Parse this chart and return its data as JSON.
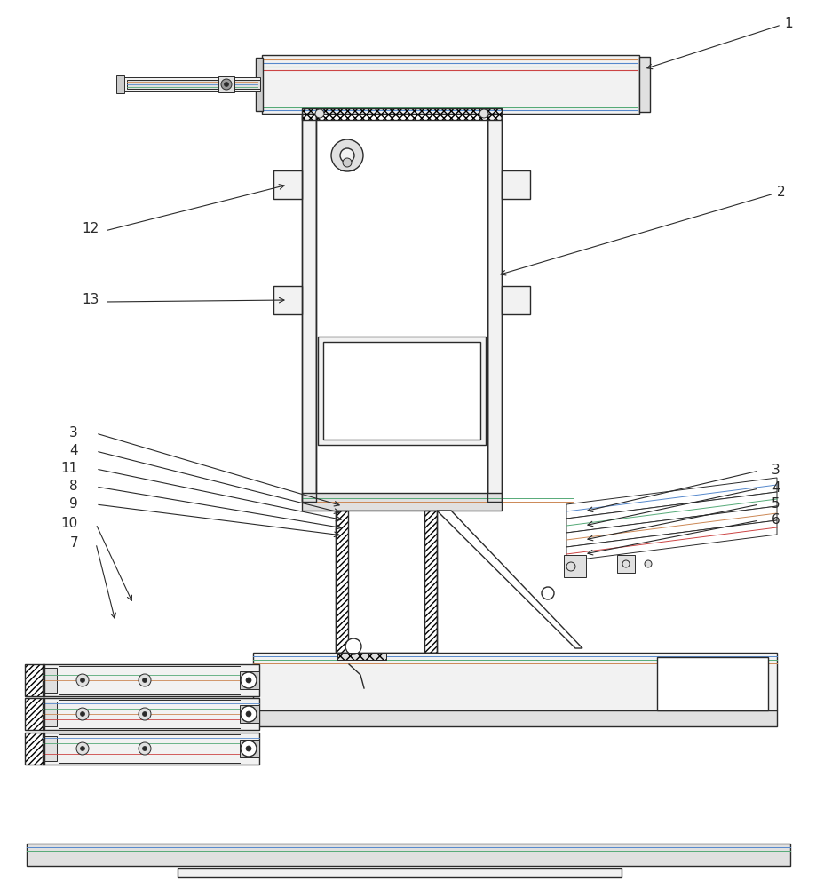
{
  "bg_color": "#ffffff",
  "lc": "#2a2a2a",
  "lc_thin": "#555555",
  "fc_white": "#ffffff",
  "fc_light": "#f2f2f2",
  "fc_gray": "#e0e0e0",
  "fc_mid": "#cccccc",
  "col_blue": "#5599cc",
  "col_green": "#55aa77",
  "col_red": "#cc5544",
  "col_cyan": "#44aacc",
  "col_purple": "#aa55cc",
  "col_yellow": "#ccaa33"
}
